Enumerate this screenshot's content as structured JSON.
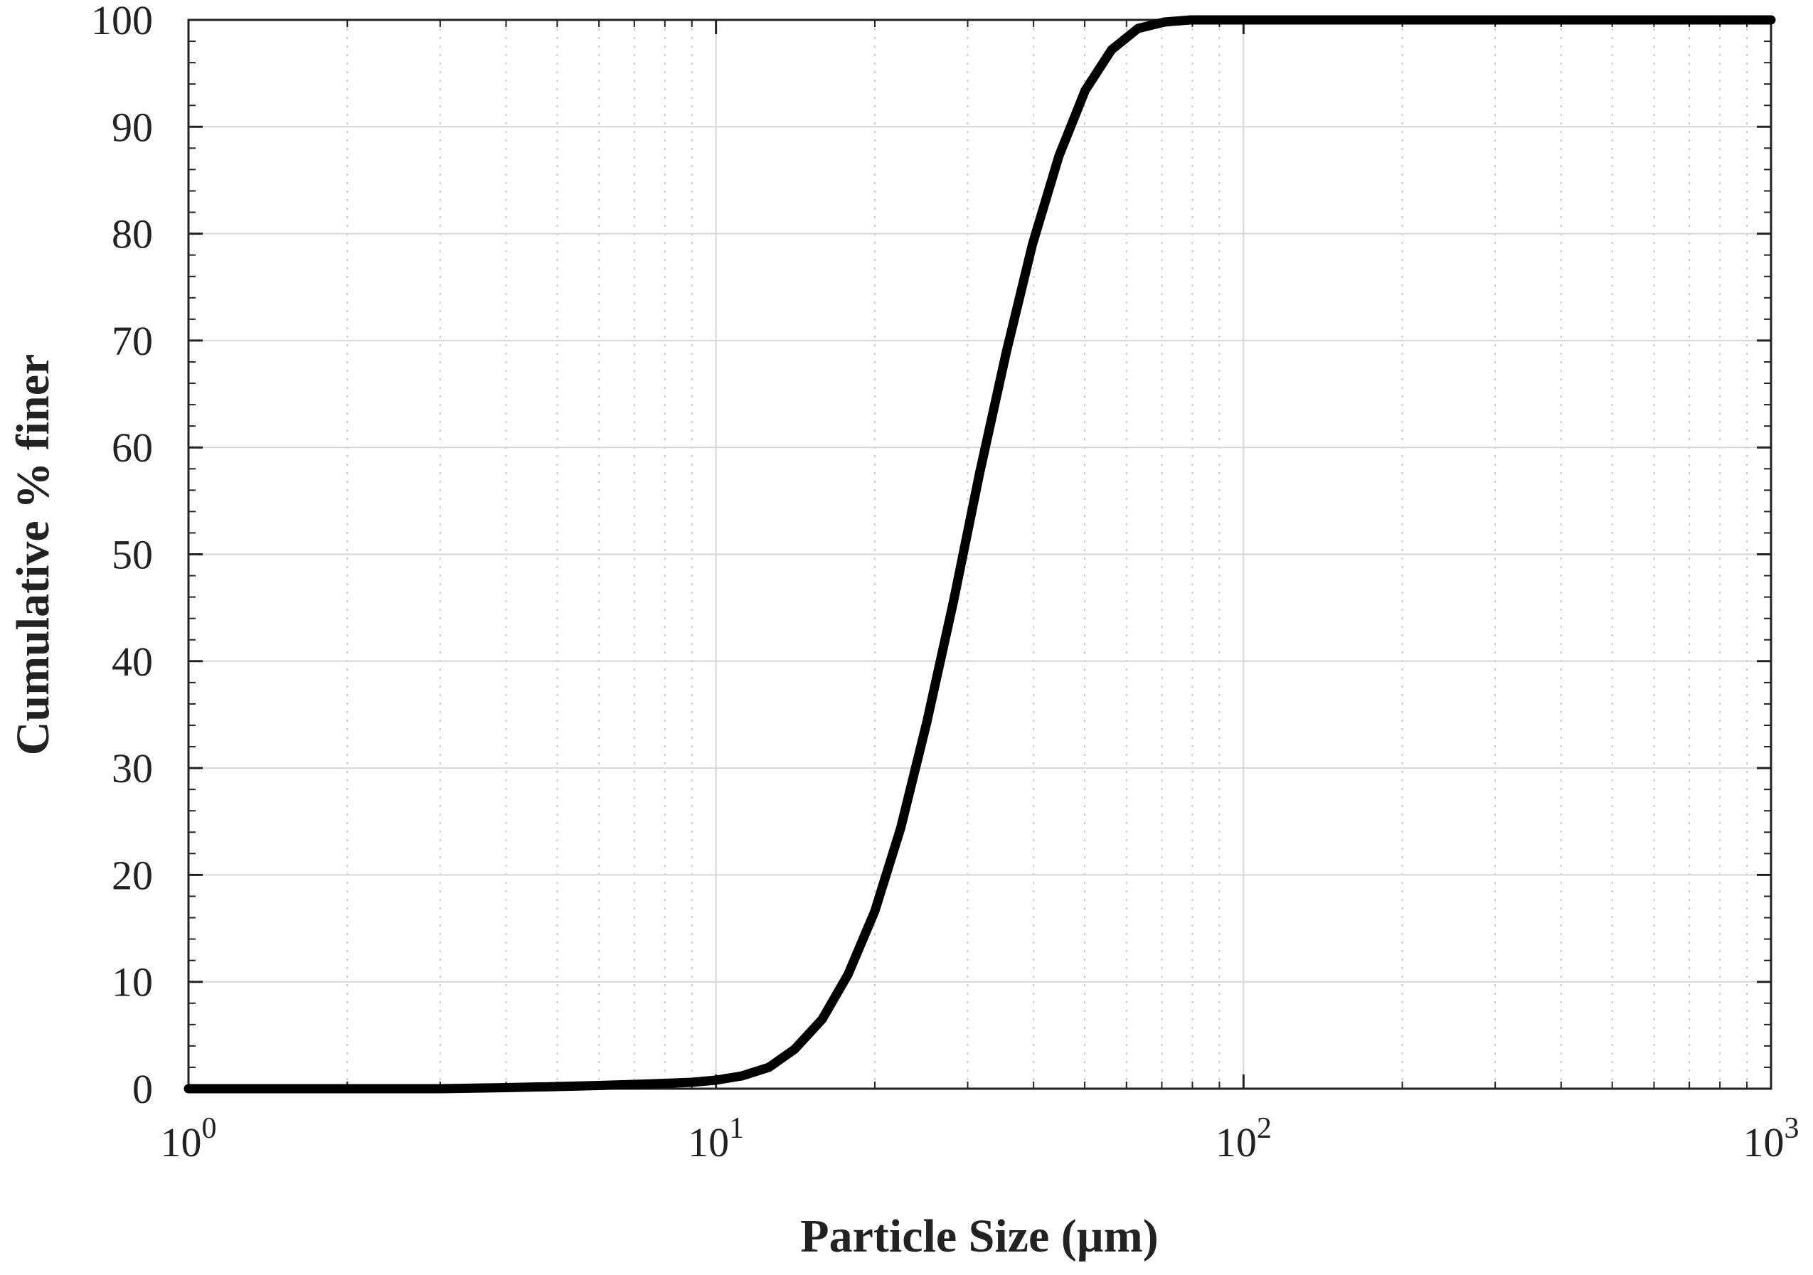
{
  "chart_data": {
    "type": "line",
    "xlabel": "Particle Size (µm)",
    "ylabel": "Cumulative % finer",
    "x_scale": "log",
    "xlim": [
      1,
      1000
    ],
    "ylim": [
      0,
      100
    ],
    "x_ticks": [
      {
        "base": "10",
        "exp": "0",
        "value": 1
      },
      {
        "base": "10",
        "exp": "1",
        "value": 10
      },
      {
        "base": "10",
        "exp": "2",
        "value": 100
      },
      {
        "base": "10",
        "exp": "3",
        "value": 1000
      }
    ],
    "y_ticks": [
      "0",
      "10",
      "20",
      "30",
      "40",
      "50",
      "60",
      "70",
      "80",
      "90",
      "100"
    ],
    "grid": true,
    "line_color": "#000000",
    "series": [
      {
        "x": [
          1,
          2,
          3,
          4,
          5,
          6,
          7,
          8,
          9,
          10,
          11.2,
          12.6,
          14.1,
          15.9,
          17.8,
          20,
          22.4,
          25.1,
          28.2,
          31.6,
          35.5,
          39.8,
          44.7,
          50.1,
          56.2,
          63.1,
          70.8,
          79.4,
          89.1,
          100,
          200,
          500,
          1000
        ],
        "y": [
          0,
          0,
          0,
          0.1,
          0.2,
          0.3,
          0.4,
          0.5,
          0.6,
          0.8,
          1.2,
          2.0,
          3.7,
          6.5,
          10.7,
          16.6,
          24.4,
          34.3,
          45.6,
          57.6,
          68.9,
          79.0,
          87.3,
          93.4,
          97.2,
          99.2,
          99.8,
          100,
          100,
          100,
          100,
          100,
          100
        ]
      }
    ]
  }
}
